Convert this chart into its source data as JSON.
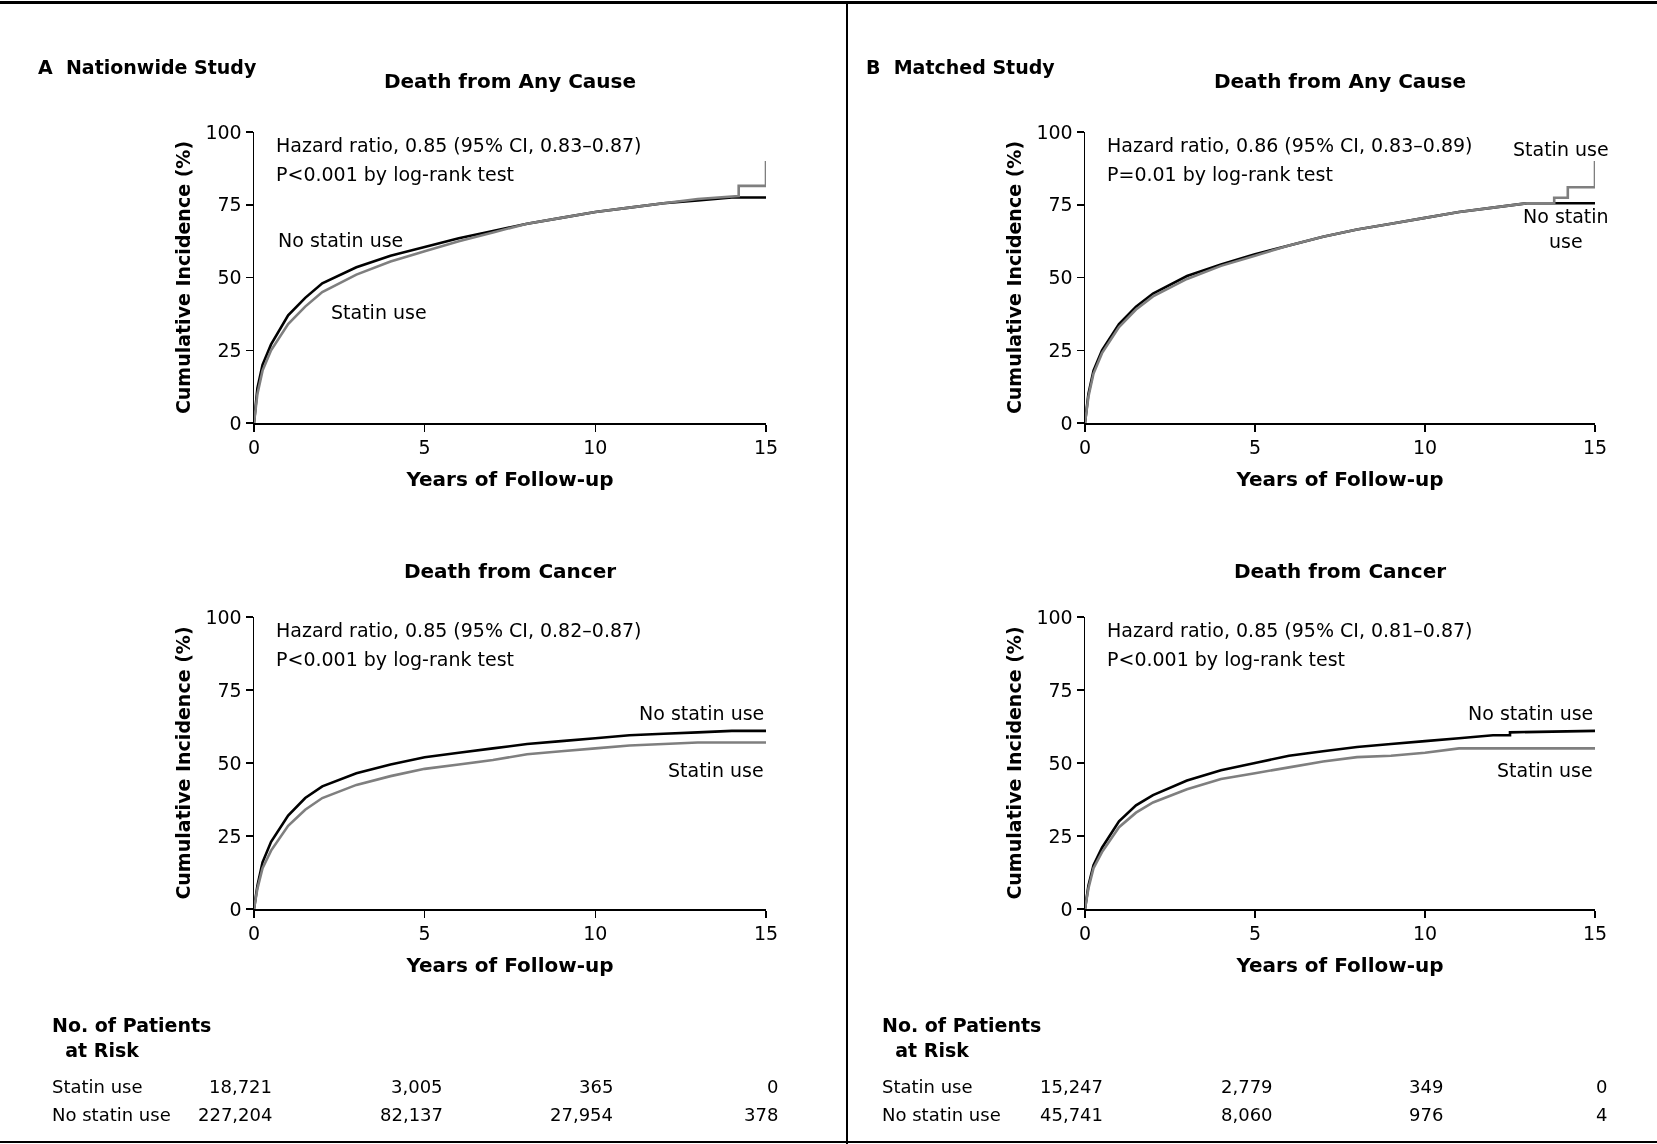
{
  "chart_data": [
    {
      "type": "line",
      "title": "Death from Any Cause",
      "xlabel": "Years of Follow-up",
      "ylabel": "Cumulative Incidence (%)",
      "xlim": [
        0,
        15
      ],
      "xticks": [
        0,
        5,
        10,
        15
      ],
      "ylim": [
        0,
        100
      ],
      "yticks": [
        0,
        25,
        50,
        75,
        100
      ],
      "line_style": "solid",
      "annotations": [
        "Hazard ratio, 0.85 (95% CI, 0.83–0.87)",
        "P<0.001 by log-rank test",
        "A  Nationwide Study"
      ],
      "series": [
        {
          "name": "No statin use",
          "color": "#000000",
          "x": [
            0,
            0.1,
            0.25,
            0.5,
            1,
            1.5,
            2,
            3,
            4,
            5,
            6,
            7,
            8,
            9,
            10,
            11,
            12,
            13,
            14,
            15
          ],
          "values": [
            0,
            12,
            20,
            27,
            37,
            43,
            48,
            53.5,
            57.5,
            60.5,
            63.5,
            66,
            68.5,
            70.5,
            72.5,
            74,
            75.5,
            76.5,
            77.5,
            77.5
          ]
        },
        {
          "name": "Statin use",
          "color": "#7f7f7f",
          "x": [
            0,
            0.1,
            0.25,
            0.5,
            1,
            1.5,
            2,
            3,
            4,
            5,
            6,
            7,
            8,
            9,
            10,
            11,
            12,
            13,
            14.2,
            14.2,
            15,
            15
          ],
          "values": [
            0,
            10,
            18,
            25,
            34,
            40,
            45,
            51,
            55.5,
            59,
            62.5,
            65.5,
            68.5,
            70.5,
            72.5,
            74,
            75.5,
            77,
            78,
            81.5,
            81.5,
            90
          ]
        }
      ]
    },
    {
      "type": "line",
      "title": "Death from Any Cause",
      "xlabel": "Years of Follow-up",
      "ylabel": "Cumulative Incidence (%)",
      "xlim": [
        0,
        15
      ],
      "xticks": [
        0,
        5,
        10,
        15
      ],
      "ylim": [
        0,
        100
      ],
      "yticks": [
        0,
        25,
        50,
        75,
        100
      ],
      "line_style": "solid",
      "annotations": [
        "Hazard ratio, 0.86 (95% CI, 0.83–0.89)",
        "P=0.01 by log-rank test",
        "B  Matched Study"
      ],
      "series": [
        {
          "name": "No statin use",
          "color": "#000000",
          "x": [
            0,
            0.1,
            0.25,
            0.5,
            1,
            1.5,
            2,
            3,
            4,
            5,
            6,
            7,
            8,
            9,
            10,
            11,
            12,
            13,
            15
          ],
          "values": [
            0,
            10,
            18,
            25,
            34,
            40,
            44.5,
            50.5,
            54.5,
            58,
            61,
            64,
            66.5,
            68.5,
            70.5,
            72.5,
            74,
            75.5,
            75.5
          ]
        },
        {
          "name": "Statin use",
          "color": "#7f7f7f",
          "x": [
            0,
            0.1,
            0.25,
            0.5,
            1,
            1.5,
            2,
            3,
            4,
            5,
            6,
            7,
            8,
            9,
            10,
            11,
            12,
            13,
            13.8,
            13.8,
            14.2,
            14.2,
            15,
            15
          ],
          "values": [
            0,
            9,
            17,
            24,
            33,
            39,
            43.5,
            49.5,
            54,
            57.5,
            61,
            64,
            66.5,
            68.5,
            70.5,
            72.5,
            74,
            75.5,
            75.5,
            77.4,
            77.4,
            81,
            81,
            90
          ]
        }
      ]
    },
    {
      "type": "line",
      "title": "Death from Cancer",
      "xlabel": "Years of Follow-up",
      "ylabel": "Cumulative Incidence (%)",
      "xlim": [
        0,
        15
      ],
      "xticks": [
        0,
        5,
        10,
        15
      ],
      "ylim": [
        0,
        100
      ],
      "yticks": [
        0,
        25,
        50,
        75,
        100
      ],
      "line_style": "solid",
      "annotations": [
        "Hazard ratio, 0.85 (95% CI, 0.82–0.87)",
        "P<0.001 by log-rank test",
        "No. of Patients\nat Risk",
        "Statin use",
        "18,721",
        "3,005",
        "365",
        "0",
        "No statin use",
        "227,204",
        "82,137",
        "27,954",
        "378"
      ],
      "series": [
        {
          "name": "No statin use",
          "color": "#000000",
          "x": [
            0,
            0.1,
            0.25,
            0.5,
            1,
            1.5,
            2,
            3,
            4,
            5,
            6,
            7,
            8,
            9,
            10,
            11,
            12,
            13,
            14,
            15
          ],
          "values": [
            0,
            8,
            16,
            23,
            32,
            38,
            42,
            46.5,
            49.5,
            52,
            53.5,
            55,
            56.5,
            57.5,
            58.5,
            59.5,
            60,
            60.5,
            61,
            61
          ]
        },
        {
          "name": "Statin use",
          "color": "#7f7f7f",
          "x": [
            0,
            0.1,
            0.25,
            0.5,
            1,
            1.5,
            2,
            3,
            4,
            5,
            6,
            7,
            8,
            9,
            10,
            11,
            12,
            13,
            15
          ],
          "values": [
            0,
            7,
            14,
            20,
            28.5,
            34,
            38,
            42.5,
            45.5,
            48,
            49.5,
            51,
            53,
            54,
            55,
            56,
            56.5,
            57,
            57
          ]
        }
      ]
    },
    {
      "type": "line",
      "title": "Death from Cancer",
      "xlabel": "Years of Follow-up",
      "ylabel": "Cumulative Incidence (%)",
      "xlim": [
        0,
        15
      ],
      "xticks": [
        0,
        5,
        10,
        15
      ],
      "ylim": [
        0,
        100
      ],
      "yticks": [
        0,
        25,
        50,
        75,
        100
      ],
      "line_style": "solid",
      "annotations": [
        "Hazard ratio, 0.85 (95% CI, 0.81–0.87)",
        "P<0.001 by log-rank test",
        "No. of Patients\nat Risk",
        "Statin use",
        "15,247",
        "2,779",
        "349",
        "0",
        "No statin use",
        "45,741",
        "8,060",
        "976",
        "4"
      ],
      "series": [
        {
          "name": "No statin use",
          "color": "#000000",
          "x": [
            0,
            0.1,
            0.25,
            0.5,
            1,
            1.5,
            2,
            3,
            4,
            5,
            6,
            7,
            8,
            9,
            10,
            11,
            12,
            12.5,
            12.5,
            15
          ],
          "values": [
            0,
            8,
            15,
            21,
            30,
            35.5,
            39,
            44,
            47.5,
            50,
            52.5,
            54,
            55.5,
            56.5,
            57.5,
            58.5,
            59.5,
            59.5,
            60.5,
            61
          ]
        },
        {
          "name": "Statin use",
          "color": "#7f7f7f",
          "x": [
            0,
            0.1,
            0.25,
            0.5,
            1,
            1.5,
            2,
            3,
            4,
            5,
            6,
            7,
            8,
            9,
            10,
            11,
            12,
            15
          ],
          "values": [
            0,
            7,
            14,
            19.5,
            28,
            33,
            36.5,
            41,
            44.5,
            46.5,
            48.5,
            50.5,
            52,
            52.5,
            53.5,
            55,
            55,
            55
          ]
        }
      ]
    }
  ]
}
